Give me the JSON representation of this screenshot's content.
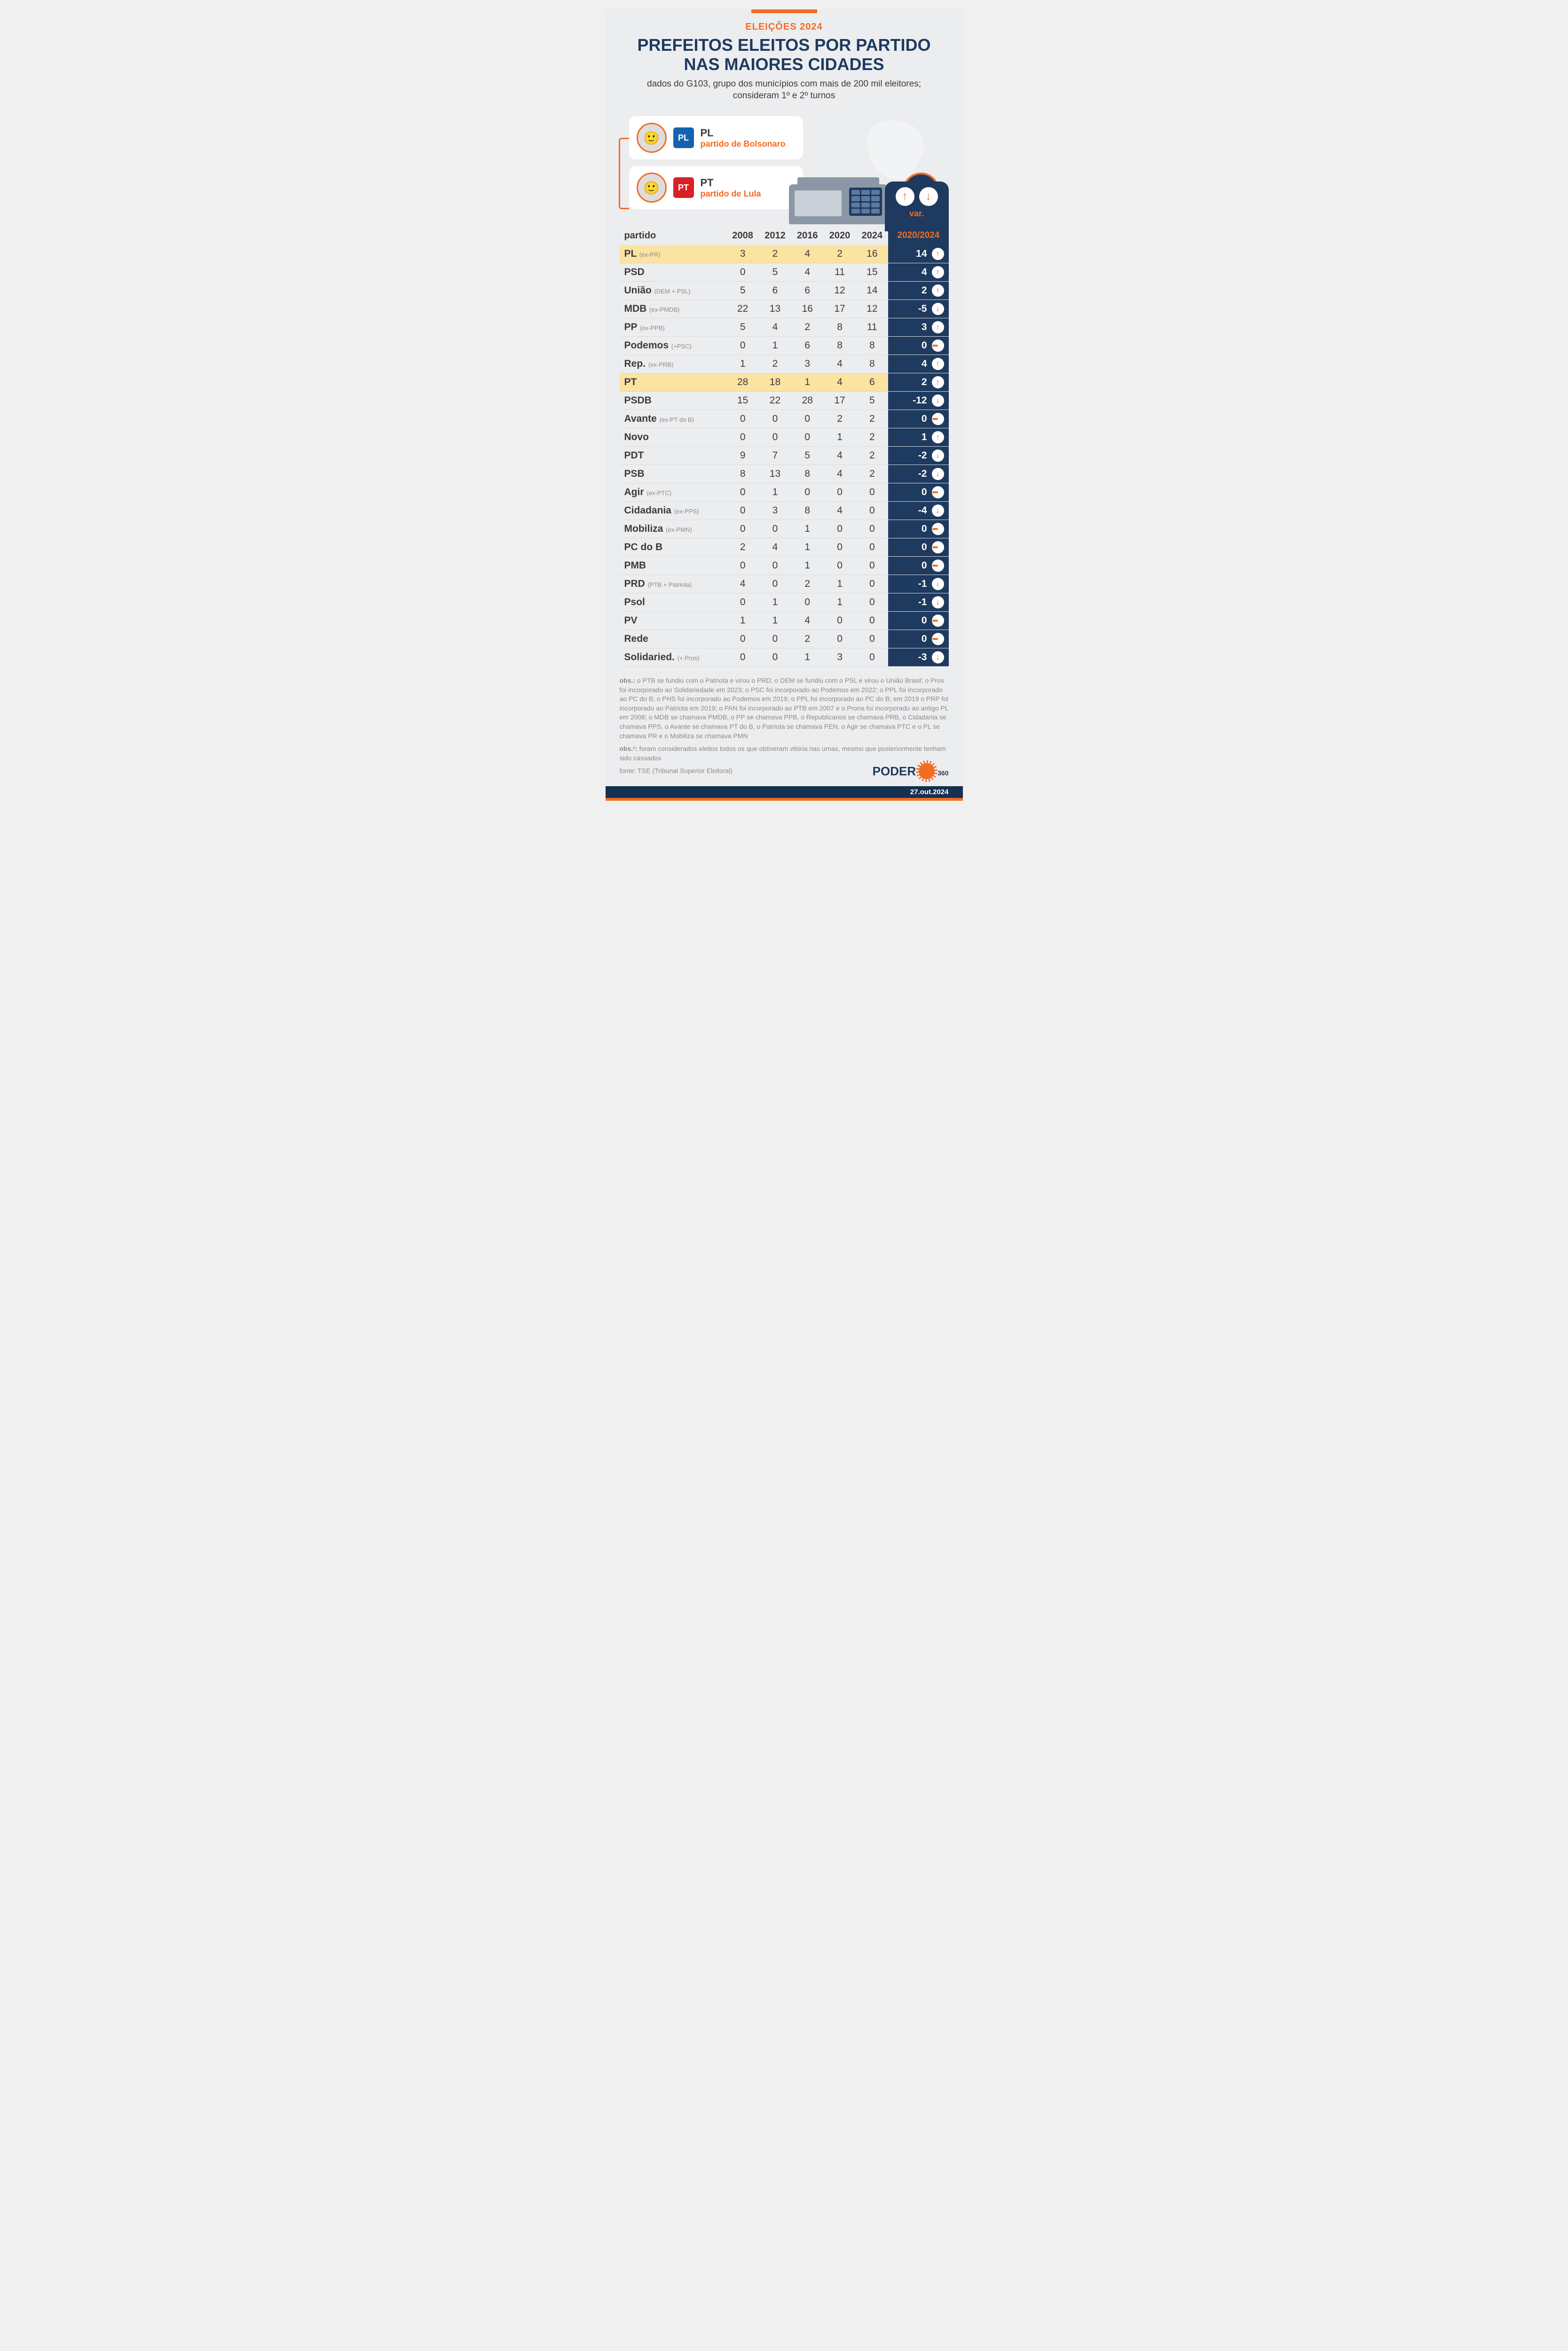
{
  "colors": {
    "accent": "#f26c23",
    "navy": "#1e3a5f",
    "navy_dark": "#16304f",
    "text": "#3b3b3b",
    "sub_text": "#8a8a8a",
    "bg": "#ecedef",
    "highlight": "#fbe3a2",
    "white": "#ffffff",
    "map": "#ffffff",
    "urna_body": "#8b97a6",
    "urna_screen": "#c9cfd6",
    "urna_keypad": "#1e3a5f",
    "urna_key": "#5b7aa0",
    "pl_logo_bg": "#1463b0",
    "pt_logo_bg": "#d92027"
  },
  "header": {
    "kicker": "ELEIÇÕES 2024",
    "title_l1": "PREFEITOS ELEITOS POR PARTIDO",
    "title_l2": "NAS MAIORES CIDADES",
    "subtitle": "dados do G103, grupo dos municípios com mais de 200 mil eleitores; consideram 1º e 2º turnos"
  },
  "legend": {
    "pl": {
      "code": "PL",
      "desc": "partido de Bolsonaro",
      "logo_text": "PL"
    },
    "pt": {
      "code": "PT",
      "desc": "partido de Lula",
      "logo_text": "PT"
    }
  },
  "var_header": {
    "label1": "var.",
    "label2": "2020/2024"
  },
  "table": {
    "header": [
      "partido",
      "2008",
      "2012",
      "2016",
      "2020",
      "2024"
    ],
    "rows": [
      {
        "party": "PL",
        "sub": "(ex-PR)",
        "vals": [
          3,
          2,
          4,
          2,
          16
        ],
        "var": 14,
        "trend": "up",
        "hl": true
      },
      {
        "party": "PSD",
        "sub": "",
        "vals": [
          0,
          5,
          4,
          11,
          15
        ],
        "var": 4,
        "trend": "up"
      },
      {
        "party": "União",
        "sub": "(DEM + PSL)",
        "vals": [
          5,
          6,
          6,
          12,
          14
        ],
        "var": 2,
        "trend": "up"
      },
      {
        "party": "MDB",
        "sub": "(ex-PMDB)",
        "vals": [
          22,
          13,
          16,
          17,
          12
        ],
        "var": -5,
        "trend": "down"
      },
      {
        "party": "PP",
        "sub": "(ex-PPB)",
        "vals": [
          5,
          4,
          2,
          8,
          11
        ],
        "var": 3,
        "trend": "up"
      },
      {
        "party": "Podemos",
        "sub": "(+PSC)",
        "vals": [
          0,
          1,
          6,
          8,
          8
        ],
        "var": 0,
        "trend": "eq"
      },
      {
        "party": "Rep.",
        "sub": "(ex-PRB)",
        "vals": [
          1,
          2,
          3,
          4,
          8
        ],
        "var": 4,
        "trend": "up"
      },
      {
        "party": "PT",
        "sub": "",
        "vals": [
          28,
          18,
          1,
          4,
          6
        ],
        "var": 2,
        "trend": "up",
        "hl": true
      },
      {
        "party": "PSDB",
        "sub": "",
        "vals": [
          15,
          22,
          28,
          17,
          5
        ],
        "var": -12,
        "trend": "down"
      },
      {
        "party": "Avante",
        "sub": "(ex-PT do B)",
        "vals": [
          0,
          0,
          0,
          2,
          2
        ],
        "var": 0,
        "trend": "eq"
      },
      {
        "party": "Novo",
        "sub": "",
        "vals": [
          0,
          0,
          0,
          1,
          2
        ],
        "var": 1,
        "trend": "up"
      },
      {
        "party": "PDT",
        "sub": "",
        "vals": [
          9,
          7,
          5,
          4,
          2
        ],
        "var": -2,
        "trend": "down"
      },
      {
        "party": "PSB",
        "sub": "",
        "vals": [
          8,
          13,
          8,
          4,
          2
        ],
        "var": -2,
        "trend": "down"
      },
      {
        "party": "Agir",
        "sub": "(ex-PTC)",
        "vals": [
          0,
          1,
          0,
          0,
          0
        ],
        "var": 0,
        "trend": "eq"
      },
      {
        "party": "Cidadania",
        "sub": "(ex-PPS)",
        "vals": [
          0,
          3,
          8,
          4,
          0
        ],
        "var": -4,
        "trend": "down"
      },
      {
        "party": "Mobiliza",
        "sub": "(ex-PMN)",
        "vals": [
          0,
          0,
          1,
          0,
          0
        ],
        "var": 0,
        "trend": "eq"
      },
      {
        "party": "PC do B",
        "sub": "",
        "vals": [
          2,
          4,
          1,
          0,
          0
        ],
        "var": 0,
        "trend": "eq"
      },
      {
        "party": "PMB",
        "sub": "",
        "vals": [
          0,
          0,
          1,
          0,
          0
        ],
        "var": 0,
        "trend": "eq"
      },
      {
        "party": "PRD",
        "sub": "(PTB + Patriota)",
        "vals": [
          4,
          0,
          2,
          1,
          0
        ],
        "var": -1,
        "trend": "down"
      },
      {
        "party": "Psol",
        "sub": "",
        "vals": [
          0,
          1,
          0,
          1,
          0
        ],
        "var": -1,
        "trend": "down"
      },
      {
        "party": "PV",
        "sub": "",
        "vals": [
          1,
          1,
          4,
          0,
          0
        ],
        "var": 0,
        "trend": "eq"
      },
      {
        "party": "Rede",
        "sub": "",
        "vals": [
          0,
          0,
          2,
          0,
          0
        ],
        "var": 0,
        "trend": "eq"
      },
      {
        "party": "Solidaried.",
        "sub": "(+ Pros)",
        "vals": [
          0,
          0,
          1,
          3,
          0
        ],
        "var": -3,
        "trend": "down"
      }
    ]
  },
  "footer": {
    "obs1_label": "obs.:",
    "obs1": " o PTB se fundiu com o Patriota e virou o PRD; o DEM se fundiu com o PSL e virou o União Brasil; o Pros foi incorporado ao Solidariedade em 2023; o PSC foi incorporado ao Podemos em 2022; o PPL foi incorporado ao PC do B; o PHS foi incorporado ao Podemos em 2019; o PPL foi incorporado ao PC do B; em 2019 o PRP foi incorporado ao Patriota em 2019; o PAN foi incorporado ao PTB em 2007 e o Prona foi incorporado ao antigo PL em 2006; o MDB se chamava PMDB, o PP se chamava PPB, o Republicanos se chamava PRB, o Cidadania se chamava PPS, o Avante se chamava PT do B, o Patriota se chamava PEN, o Agir se chamava PTC e o PL se chamava PR e o Mobiliza se chamava PMN",
    "obs2_label": "obs.²:",
    "obs2": " foram considerados eleitos todos os que obtiveram vitória nas urnas, mesmo que posteriormente tenham sido cassados",
    "source_label": "fonte:",
    "source": " TSE (Tribunal Superior Eleitoral)",
    "brand1": "PODER",
    "brand2": "360",
    "date": "27.out.2024"
  }
}
